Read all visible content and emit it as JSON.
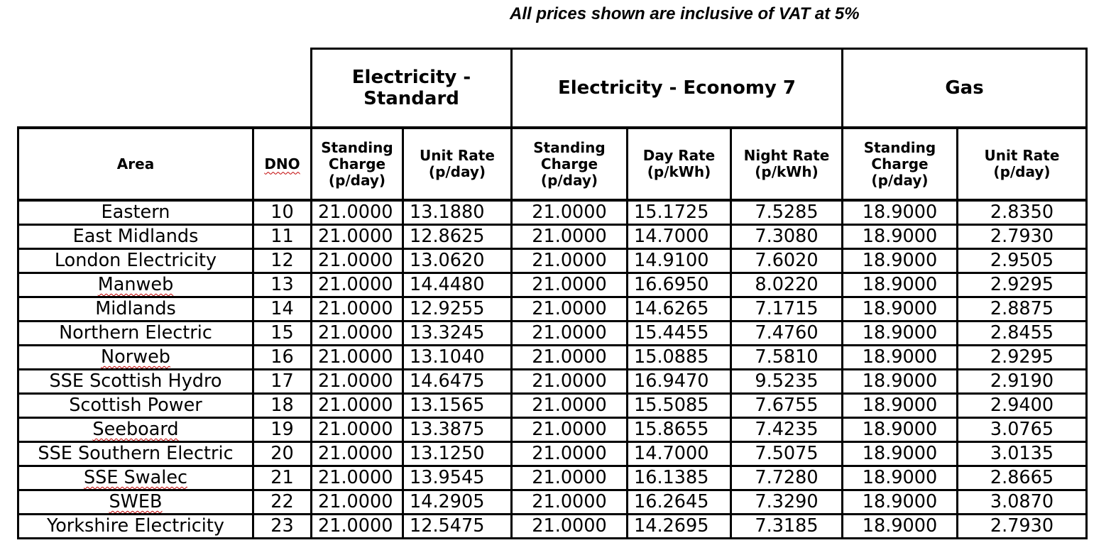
{
  "note": "All prices shown are inclusive of VAT at 5%",
  "groups": {
    "standard": "Electricity - Standard",
    "economy7": "Electricity - Economy 7",
    "gas": "Gas"
  },
  "headers": {
    "area": "Area",
    "dno": "DNO",
    "std_standing": "Standing Charge (p/day)",
    "std_unit": "Unit Rate (p/day)",
    "e7_standing": "Standing Charge (p/day)",
    "e7_day": "Day Rate (p/kWh)",
    "e7_night": "Night Rate (p/kWh)",
    "gas_standing": "Standing Charge (p/day)",
    "gas_unit": "Unit Rate (p/day)"
  },
  "rows": [
    {
      "area": "Eastern",
      "dno": "10",
      "std_standing": "21.0000",
      "std_unit": "13.1880",
      "e7_standing": "21.0000",
      "e7_day": "15.1725",
      "e7_night": "7.5285",
      "gas_standing": "18.9000",
      "gas_unit": "2.8350"
    },
    {
      "area": "East Midlands",
      "dno": "11",
      "std_standing": "21.0000",
      "std_unit": "12.8625",
      "e7_standing": "21.0000",
      "e7_day": "14.7000",
      "e7_night": "7.3080",
      "gas_standing": "18.9000",
      "gas_unit": "2.7930"
    },
    {
      "area": "London Electricity",
      "dno": "12",
      "std_standing": "21.0000",
      "std_unit": "13.0620",
      "e7_standing": "21.0000",
      "e7_day": "14.9100",
      "e7_night": "7.6020",
      "gas_standing": "18.9000",
      "gas_unit": "2.9505"
    },
    {
      "area": "Manweb",
      "dno": "13",
      "std_standing": "21.0000",
      "std_unit": "14.4480",
      "e7_standing": "21.0000",
      "e7_day": "16.6950",
      "e7_night": "8.0220",
      "gas_standing": "18.9000",
      "gas_unit": "2.9295"
    },
    {
      "area": "Midlands",
      "dno": "14",
      "std_standing": "21.0000",
      "std_unit": "12.9255",
      "e7_standing": "21.0000",
      "e7_day": "14.6265",
      "e7_night": "7.1715",
      "gas_standing": "18.9000",
      "gas_unit": "2.8875"
    },
    {
      "area": "Northern Electric",
      "dno": "15",
      "std_standing": "21.0000",
      "std_unit": "13.3245",
      "e7_standing": "21.0000",
      "e7_day": "15.4455",
      "e7_night": "7.4760",
      "gas_standing": "18.9000",
      "gas_unit": "2.8455"
    },
    {
      "area": "Norweb",
      "dno": "16",
      "std_standing": "21.0000",
      "std_unit": "13.1040",
      "e7_standing": "21.0000",
      "e7_day": "15.0885",
      "e7_night": "7.5810",
      "gas_standing": "18.9000",
      "gas_unit": "2.9295"
    },
    {
      "area": "SSE Scottish Hydro",
      "dno": "17",
      "std_standing": "21.0000",
      "std_unit": "14.6475",
      "e7_standing": "21.0000",
      "e7_day": "16.9470",
      "e7_night": "9.5235",
      "gas_standing": "18.9000",
      "gas_unit": "2.9190"
    },
    {
      "area": "Scottish Power",
      "dno": "18",
      "std_standing": "21.0000",
      "std_unit": "13.1565",
      "e7_standing": "21.0000",
      "e7_day": "15.5085",
      "e7_night": "7.6755",
      "gas_standing": "18.9000",
      "gas_unit": "2.9400"
    },
    {
      "area": "Seeboard",
      "dno": "19",
      "std_standing": "21.0000",
      "std_unit": "13.3875",
      "e7_standing": "21.0000",
      "e7_day": "15.8655",
      "e7_night": "7.4235",
      "gas_standing": "18.9000",
      "gas_unit": "3.0765"
    },
    {
      "area": "SSE Southern Electric",
      "dno": "20",
      "std_standing": "21.0000",
      "std_unit": "13.1250",
      "e7_standing": "21.0000",
      "e7_day": "14.7000",
      "e7_night": "7.5075",
      "gas_standing": "18.9000",
      "gas_unit": "3.0135"
    },
    {
      "area": "SSE Swalec",
      "dno": "21",
      "std_standing": "21.0000",
      "std_unit": "13.9545",
      "e7_standing": "21.0000",
      "e7_day": "16.1385",
      "e7_night": "7.7280",
      "gas_standing": "18.9000",
      "gas_unit": "2.8665"
    },
    {
      "area": "SWEB",
      "dno": "22",
      "std_standing": "21.0000",
      "std_unit": "14.2905",
      "e7_standing": "21.0000",
      "e7_day": "16.2645",
      "e7_night": "7.3290",
      "gas_standing": "18.9000",
      "gas_unit": "3.0870"
    },
    {
      "area": "Yorkshire Electricity",
      "dno": "23",
      "std_standing": "21.0000",
      "std_unit": "12.5475",
      "e7_standing": "21.0000",
      "e7_day": "14.2695",
      "e7_night": "7.3185",
      "gas_standing": "18.9000",
      "gas_unit": "2.7930"
    }
  ]
}
